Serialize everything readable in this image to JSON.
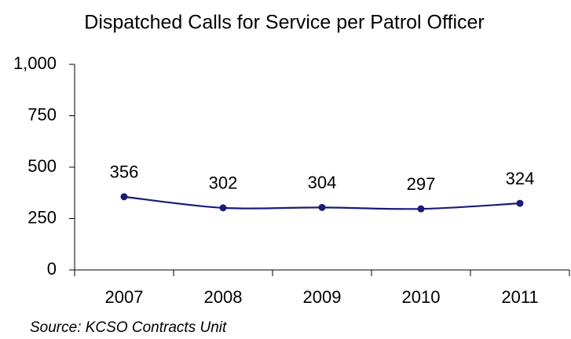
{
  "chart_data": {
    "type": "line",
    "title": "Dispatched Calls for Service per Patrol Officer",
    "categories": [
      "2007",
      "2008",
      "2009",
      "2010",
      "2011"
    ],
    "series": [
      {
        "name": "Dispatched Calls for Service per Patrol Officer",
        "color": "#1b1b78",
        "values": [
          356,
          302,
          304,
          297,
          324
        ]
      }
    ],
    "ylim": [
      0,
      1000
    ],
    "yticks": [
      0,
      250,
      500,
      750,
      {
        "value": 1000,
        "label": "1,000"
      }
    ],
    "grid": false,
    "source": "Source:  KCSO Contracts Unit"
  }
}
